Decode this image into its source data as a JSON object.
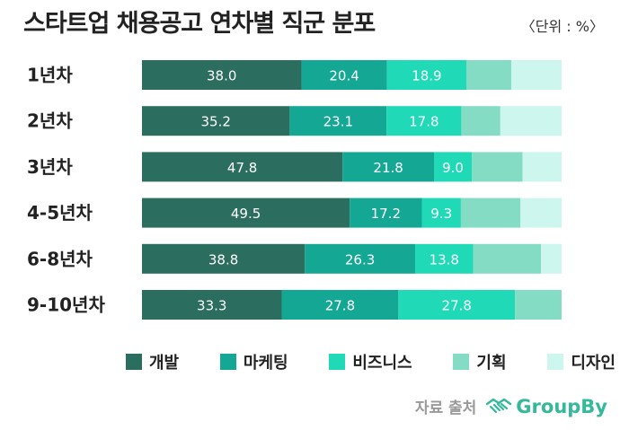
{
  "title": "스타트업 채용공고 연차별 직군 분포",
  "unit_label": "〈단위 : %〉",
  "colors": {
    "개발": "#2b6e5f",
    "마케팅": "#14a894",
    "비즈니스": "#20d9b6",
    "기획": "#84dcc4",
    "디자인": "#cdf6ee"
  },
  "chart_data": {
    "type": "bar",
    "orientation": "horizontal",
    "stacked": true,
    "categories": [
      "1년차",
      "2년차",
      "3년차",
      "4-5년차",
      "6-8년차",
      "9-10년차"
    ],
    "series": [
      {
        "name": "개발",
        "values": [
          38.0,
          35.2,
          47.8,
          49.5,
          38.8,
          33.3
        ]
      },
      {
        "name": "마케팅",
        "values": [
          20.4,
          23.1,
          21.8,
          17.2,
          26.3,
          27.8
        ]
      },
      {
        "name": "비즈니스",
        "values": [
          18.9,
          17.8,
          9.0,
          9.3,
          13.8,
          27.8
        ]
      },
      {
        "name": "기획",
        "values": [
          10.7,
          9.3,
          12.1,
          14.2,
          16.2,
          11.1
        ]
      },
      {
        "name": "디자인",
        "values": [
          12.0,
          14.6,
          9.3,
          9.8,
          4.9,
          0.0
        ]
      }
    ],
    "data_labels": [
      [
        "38.0",
        "20.4",
        "18.9",
        "",
        ""
      ],
      [
        "35.2",
        "23.1",
        "17.8",
        "",
        ""
      ],
      [
        "47.8",
        "21.8",
        "9.0",
        "",
        ""
      ],
      [
        "49.5",
        "17.2",
        "9.3",
        "",
        ""
      ],
      [
        "38.8",
        "26.3",
        "13.8",
        "",
        ""
      ],
      [
        "33.3",
        "27.8",
        "27.8",
        "",
        ""
      ]
    ],
    "xlim": [
      0,
      100
    ],
    "grid": false,
    "legend_position": "bottom"
  },
  "legend": [
    "개발",
    "마케팅",
    "비즈니스",
    "기획",
    "디자인"
  ],
  "source": {
    "label": "자료 출처",
    "brand": "GroupBy",
    "icon": "handshake-icon"
  }
}
